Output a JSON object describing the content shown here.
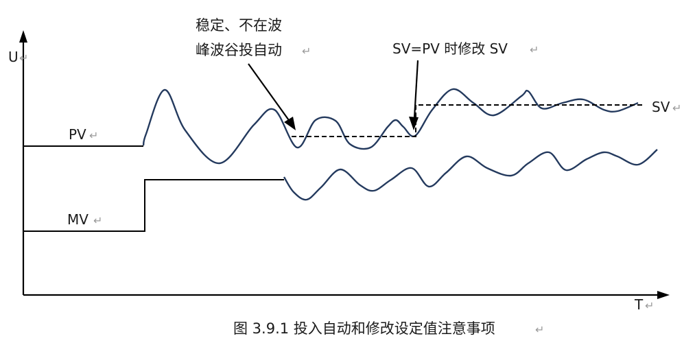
{
  "diagram": {
    "axis_y_label": "U",
    "axis_x_label": "T",
    "pv_label": "PV",
    "mv_label": "MV",
    "sv_label": "SV",
    "annotation_auto_line1": "稳定、不在波",
    "annotation_auto_line2": "峰波谷投自动",
    "annotation_sv": "SV=PV 时修改 SV",
    "return_mark": "↵"
  },
  "caption": {
    "text": "图 3.9.1 投入自动和修改设定值注意事项"
  },
  "colors": {
    "curve": "#243a5e",
    "ink": "#000000"
  }
}
